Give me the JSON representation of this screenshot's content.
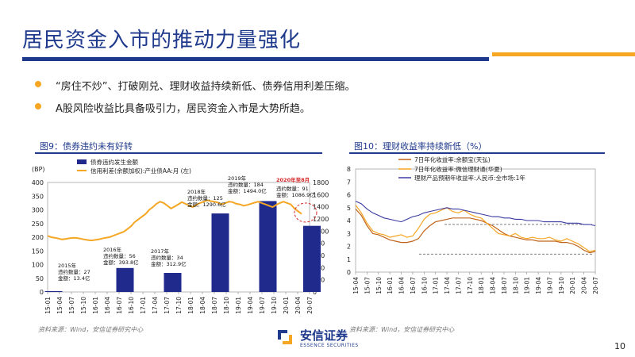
{
  "slide": {
    "title": "居民资金入市的推动力量强化",
    "bullets": [
      "“房住不炒”、打破刚兑、理财收益持续新低、债券信用利差压缩。",
      "A股风险收益比具备吸引力，居民资金入市是大势所趋。"
    ],
    "page_number": "10",
    "logo_cn": "安信证券",
    "logo_en": "ESSENCE SECURITIES",
    "accent_blue": "#1f3a8c",
    "accent_orange": "#f5a623"
  },
  "chart_data": [
    {
      "type": "bar",
      "figure_label": "图9：债券违约未有好转",
      "source": "资料来源：Wind，安信证券研究中心",
      "left_axis_label": "(BP)",
      "left_ylim": [
        0,
        400
      ],
      "left_ticks": [
        "0",
        "50",
        "100",
        "150",
        "200",
        "250",
        "300",
        "350",
        "400"
      ],
      "right_ylim": [
        0,
        1800
      ],
      "right_ticks": [
        "0",
        "200",
        "400",
        "600",
        "800",
        "1000",
        "1200",
        "1400",
        "1600",
        "1800"
      ],
      "x_ticks": [
        "15-01",
        "15-04",
        "15-07",
        "15-10",
        "16-01",
        "16-04",
        "16-07",
        "16-10",
        "17-01",
        "17-04",
        "17-07",
        "17-10",
        "18-01",
        "18-04",
        "18-07",
        "18-10",
        "19-01",
        "19-04",
        "19-07",
        "19-10",
        "20-01",
        "20-04",
        "20-07"
      ],
      "legend": [
        "债券违约发生金额",
        "信用利差(余额加权):产业债AA:月 (左)"
      ],
      "bars": [
        {
          "x_index": 0.5,
          "value": 13.4
        },
        {
          "x_index": 6.5,
          "value": 393.8
        },
        {
          "x_index": 10.5,
          "value": 312.9
        },
        {
          "x_index": 14.5,
          "value": 1290.6
        },
        {
          "x_index": 18.5,
          "value": 1494.0
        },
        {
          "x_index": 22.2,
          "value": 1086.9
        }
      ],
      "spread_series": {
        "name": "信用利差(余额加权):产业债AA:月 (左)",
        "values": [
          205,
          200,
          198,
          195,
          192,
          194,
          196,
          198,
          197,
          195,
          192,
          190,
          188,
          190,
          192,
          195,
          198,
          200,
          205,
          210,
          215,
          220,
          230,
          240,
          255,
          265,
          275,
          285,
          300,
          310,
          322,
          330,
          325,
          315,
          305,
          312,
          320,
          328,
          322,
          315,
          310,
          318,
          325,
          330,
          335,
          332,
          330,
          326,
          320,
          325,
          330,
          328,
          322,
          320,
          315,
          318,
          322,
          326,
          330,
          325,
          320,
          315,
          310,
          318,
          325,
          330,
          325,
          320,
          305,
          295,
          285
        ]
      },
      "annotations": [
        {
          "text": "2015年\n违约数量：27\n金额：13.4亿",
          "highlight": false
        },
        {
          "text": "2016年\n违约数量：56\n金额：393.8亿",
          "highlight": false
        },
        {
          "text": "2017年\n违约数量：34\n金额：312.9亿",
          "highlight": false
        },
        {
          "text": "2018年\n违约数量：125\n金额：1290.6亿",
          "highlight": false
        },
        {
          "text": "2019年\n违约数量：184\n金额：1494.0亿",
          "highlight": false
        },
        {
          "text": "2020年至8月",
          "highlight": true
        },
        {
          "text": "违约数量：91\n金额：1086.9亿",
          "highlight": false
        }
      ]
    },
    {
      "type": "line",
      "figure_label": "图10：理财收益率持续新低（%）",
      "source": "资料来源：Wind，安信证券研究中心",
      "ylim": [
        0,
        8
      ],
      "y_ticks": [
        "0",
        "1",
        "2",
        "3",
        "4",
        "5",
        "6",
        "7",
        "8"
      ],
      "x_ticks": [
        "15-04",
        "15-07",
        "15-10",
        "16-01",
        "16-04",
        "16-07",
        "16-10",
        "17-01",
        "17-04",
        "17-07",
        "17-10",
        "18-01",
        "18-04",
        "18-07",
        "18-10",
        "19-01",
        "19-04",
        "19-07",
        "19-10",
        "20-01",
        "20-04",
        "20-07"
      ],
      "legend": [
        "7日年化收益率:余额宝(天弘)",
        "7日年化收益率:微信理财通(华夏)",
        "理财产品预期年收益率:人民币:全市场:1年"
      ],
      "series": [
        {
          "name": "7日年化收益率:余额宝(天弘)",
          "color": "#c0641a",
          "values": [
            4.9,
            4.4,
            3.6,
            3.0,
            2.9,
            2.7,
            2.5,
            2.4,
            2.3,
            2.3,
            2.4,
            2.6,
            3.2,
            3.6,
            3.9,
            4.0,
            4.1,
            4.2,
            4.2,
            4.2,
            4.2,
            4.1,
            4.0,
            3.8,
            3.6,
            3.3,
            3.0,
            2.8,
            2.7,
            2.6,
            2.5,
            2.5,
            2.4,
            2.4,
            2.4,
            2.4,
            2.3,
            2.3,
            2.2,
            2.0,
            1.7,
            1.5,
            1.6
          ]
        },
        {
          "name": "7日年化收益率:微信理财通(华夏)",
          "color": "#f5a623",
          "values": [
            5.2,
            4.6,
            3.8,
            3.2,
            3.0,
            2.9,
            2.7,
            2.8,
            2.9,
            2.7,
            2.8,
            3.4,
            4.1,
            4.5,
            4.6,
            4.8,
            5.0,
            4.7,
            4.6,
            4.8,
            4.5,
            4.3,
            4.2,
            3.8,
            3.4,
            3.0,
            2.9,
            2.8,
            3.0,
            2.7,
            2.6,
            2.7,
            2.6,
            2.6,
            2.7,
            2.5,
            2.4,
            2.6,
            2.4,
            2.2,
            1.9,
            1.6,
            1.7
          ]
        },
        {
          "name": "理财产品预期年收益率:人民币:全市场:1年",
          "color": "#3a3aa0",
          "values": [
            5.5,
            5.3,
            4.9,
            4.6,
            4.4,
            4.2,
            4.1,
            4.0,
            3.9,
            4.1,
            4.3,
            4.4,
            4.6,
            4.7,
            4.8,
            4.9,
            5.0,
            4.9,
            4.9,
            4.8,
            4.7,
            4.6,
            4.5,
            4.4,
            4.3,
            4.3,
            4.2,
            4.2,
            4.1,
            4.1,
            4.0,
            4.0,
            4.0,
            3.9,
            3.9,
            3.9,
            3.9,
            3.8,
            3.8,
            3.8,
            3.7,
            3.7,
            3.6
          ]
        }
      ],
      "reference_lines": [
        3.7,
        1.4
      ]
    }
  ]
}
